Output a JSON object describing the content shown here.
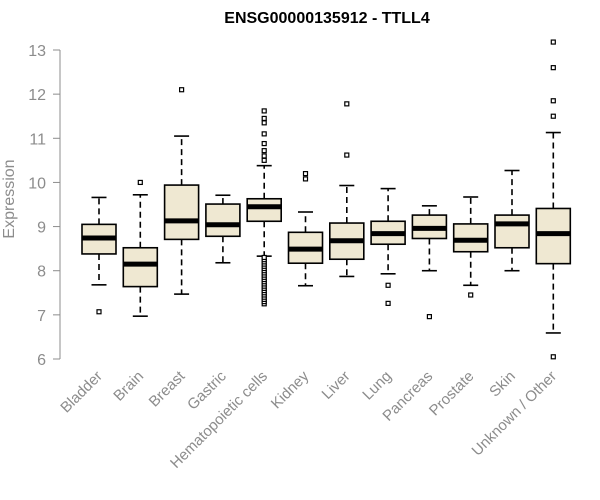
{
  "chart_data": {
    "type": "box",
    "title": "ENSG00000135912 - TTLL4",
    "xlabel": "",
    "ylabel": "Expression",
    "ylim": [
      6,
      13
    ],
    "yticks": [
      6,
      7,
      8,
      9,
      10,
      11,
      12,
      13
    ],
    "grid": false,
    "colors": {
      "box_fill": "#efe8d2",
      "stroke": "#000000",
      "axis": "#8c8c8c"
    },
    "categories": [
      "Bladder",
      "Brain",
      "Breast",
      "Gastric",
      "Hematopoietic cells",
      "Kidney",
      "Liver",
      "Lung",
      "Pancreas",
      "Prostate",
      "Skin",
      "Unknown / Other"
    ],
    "boxes": [
      {
        "category": "Bladder",
        "whisker_low": 7.68,
        "q1": 8.38,
        "median": 8.74,
        "q3": 9.05,
        "whisker_high": 9.66,
        "outliers": [
          7.07
        ]
      },
      {
        "category": "Brain",
        "whisker_low": 6.97,
        "q1": 7.64,
        "median": 8.15,
        "q3": 8.52,
        "whisker_high": 9.72,
        "outliers": [
          10.0
        ]
      },
      {
        "category": "Breast",
        "whisker_low": 7.47,
        "q1": 8.71,
        "median": 9.13,
        "q3": 9.94,
        "whisker_high": 11.05,
        "outliers": [
          12.1
        ]
      },
      {
        "category": "Gastric",
        "whisker_low": 8.18,
        "q1": 8.78,
        "median": 9.04,
        "q3": 9.51,
        "whisker_high": 9.71,
        "outliers": []
      },
      {
        "category": "Hematopoietic cells",
        "whisker_low": 8.33,
        "q1": 9.12,
        "median": 9.45,
        "q3": 9.63,
        "whisker_high": 10.38,
        "outliers": [
          7.25,
          7.3,
          7.35,
          7.4,
          7.45,
          7.5,
          7.55,
          7.6,
          7.65,
          7.7,
          7.75,
          7.8,
          7.85,
          7.9,
          7.95,
          8.0,
          8.05,
          8.1,
          8.15,
          8.2,
          8.25,
          8.3,
          10.5,
          10.6,
          10.72,
          10.88,
          11.1,
          11.35,
          11.45,
          11.62
        ]
      },
      {
        "category": "Kidney",
        "whisker_low": 7.66,
        "q1": 8.17,
        "median": 8.49,
        "q3": 8.87,
        "whisker_high": 9.33,
        "outliers": [
          10.08,
          10.2
        ]
      },
      {
        "category": "Liver",
        "whisker_low": 7.87,
        "q1": 8.26,
        "median": 8.68,
        "q3": 9.08,
        "whisker_high": 9.93,
        "outliers": [
          10.62,
          11.78
        ]
      },
      {
        "category": "Lung",
        "whisker_low": 7.93,
        "q1": 8.6,
        "median": 8.84,
        "q3": 9.12,
        "whisker_high": 9.86,
        "outliers": [
          7.26,
          7.67
        ]
      },
      {
        "category": "Pancreas",
        "whisker_low": 8.0,
        "q1": 8.73,
        "median": 8.96,
        "q3": 9.26,
        "whisker_high": 9.47,
        "outliers": [
          6.96
        ]
      },
      {
        "category": "Prostate",
        "whisker_low": 7.67,
        "q1": 8.43,
        "median": 8.69,
        "q3": 9.06,
        "whisker_high": 9.67,
        "outliers": [
          7.45
        ]
      },
      {
        "category": "Skin",
        "whisker_low": 8.0,
        "q1": 8.52,
        "median": 9.06,
        "q3": 9.26,
        "whisker_high": 10.27,
        "outliers": []
      },
      {
        "category": "Unknown / Other",
        "whisker_low": 6.59,
        "q1": 8.16,
        "median": 8.84,
        "q3": 9.41,
        "whisker_high": 11.13,
        "outliers": [
          6.05,
          11.5,
          11.85,
          12.6,
          13.18
        ]
      }
    ]
  }
}
